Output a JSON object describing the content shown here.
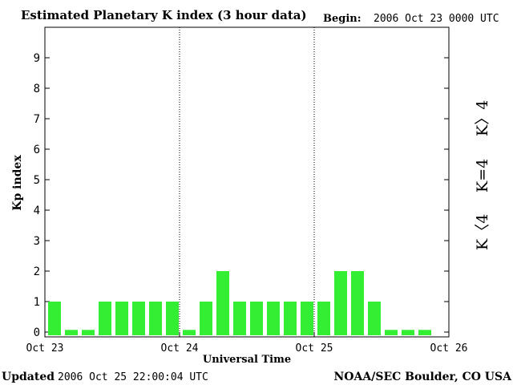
{
  "header": {
    "title": "Estimated Planetary K index (3 hour data)",
    "begin_label": "Begin:",
    "begin_value": "2006 Oct 23 0000 UTC"
  },
  "footer": {
    "updated_label": "Updated",
    "updated_value": "2006 Oct 25 22:00:04 UTC",
    "credit": "NOAA/SEC Boulder, CO USA"
  },
  "legend": {
    "high": {
      "text": "K〉4",
      "color": "#ff2a00"
    },
    "mid": {
      "text": "K=4",
      "color": "#ffd700"
    },
    "low": {
      "text": "K〈4",
      "color": "#33ee33"
    }
  },
  "chart_data": {
    "type": "bar",
    "ylabel": "Kp index",
    "xlabel": "Universal Time",
    "ylim": [
      0,
      9
    ],
    "y_ticks": [
      "0",
      "1",
      "2",
      "3",
      "4",
      "5",
      "6",
      "7",
      "8",
      "9"
    ],
    "x_ticks": [
      "Oct 23",
      "Oct 24",
      "Oct 25",
      "Oct 26"
    ],
    "values": [
      1,
      0.07,
      0.07,
      1,
      1,
      1,
      1,
      1,
      0.07,
      1,
      2,
      1,
      1,
      1,
      1,
      1,
      1,
      2,
      2,
      1,
      0.07,
      0.07,
      0.07,
      0
    ],
    "bar_color": "#33ee33",
    "day_dividers": "dotted"
  }
}
